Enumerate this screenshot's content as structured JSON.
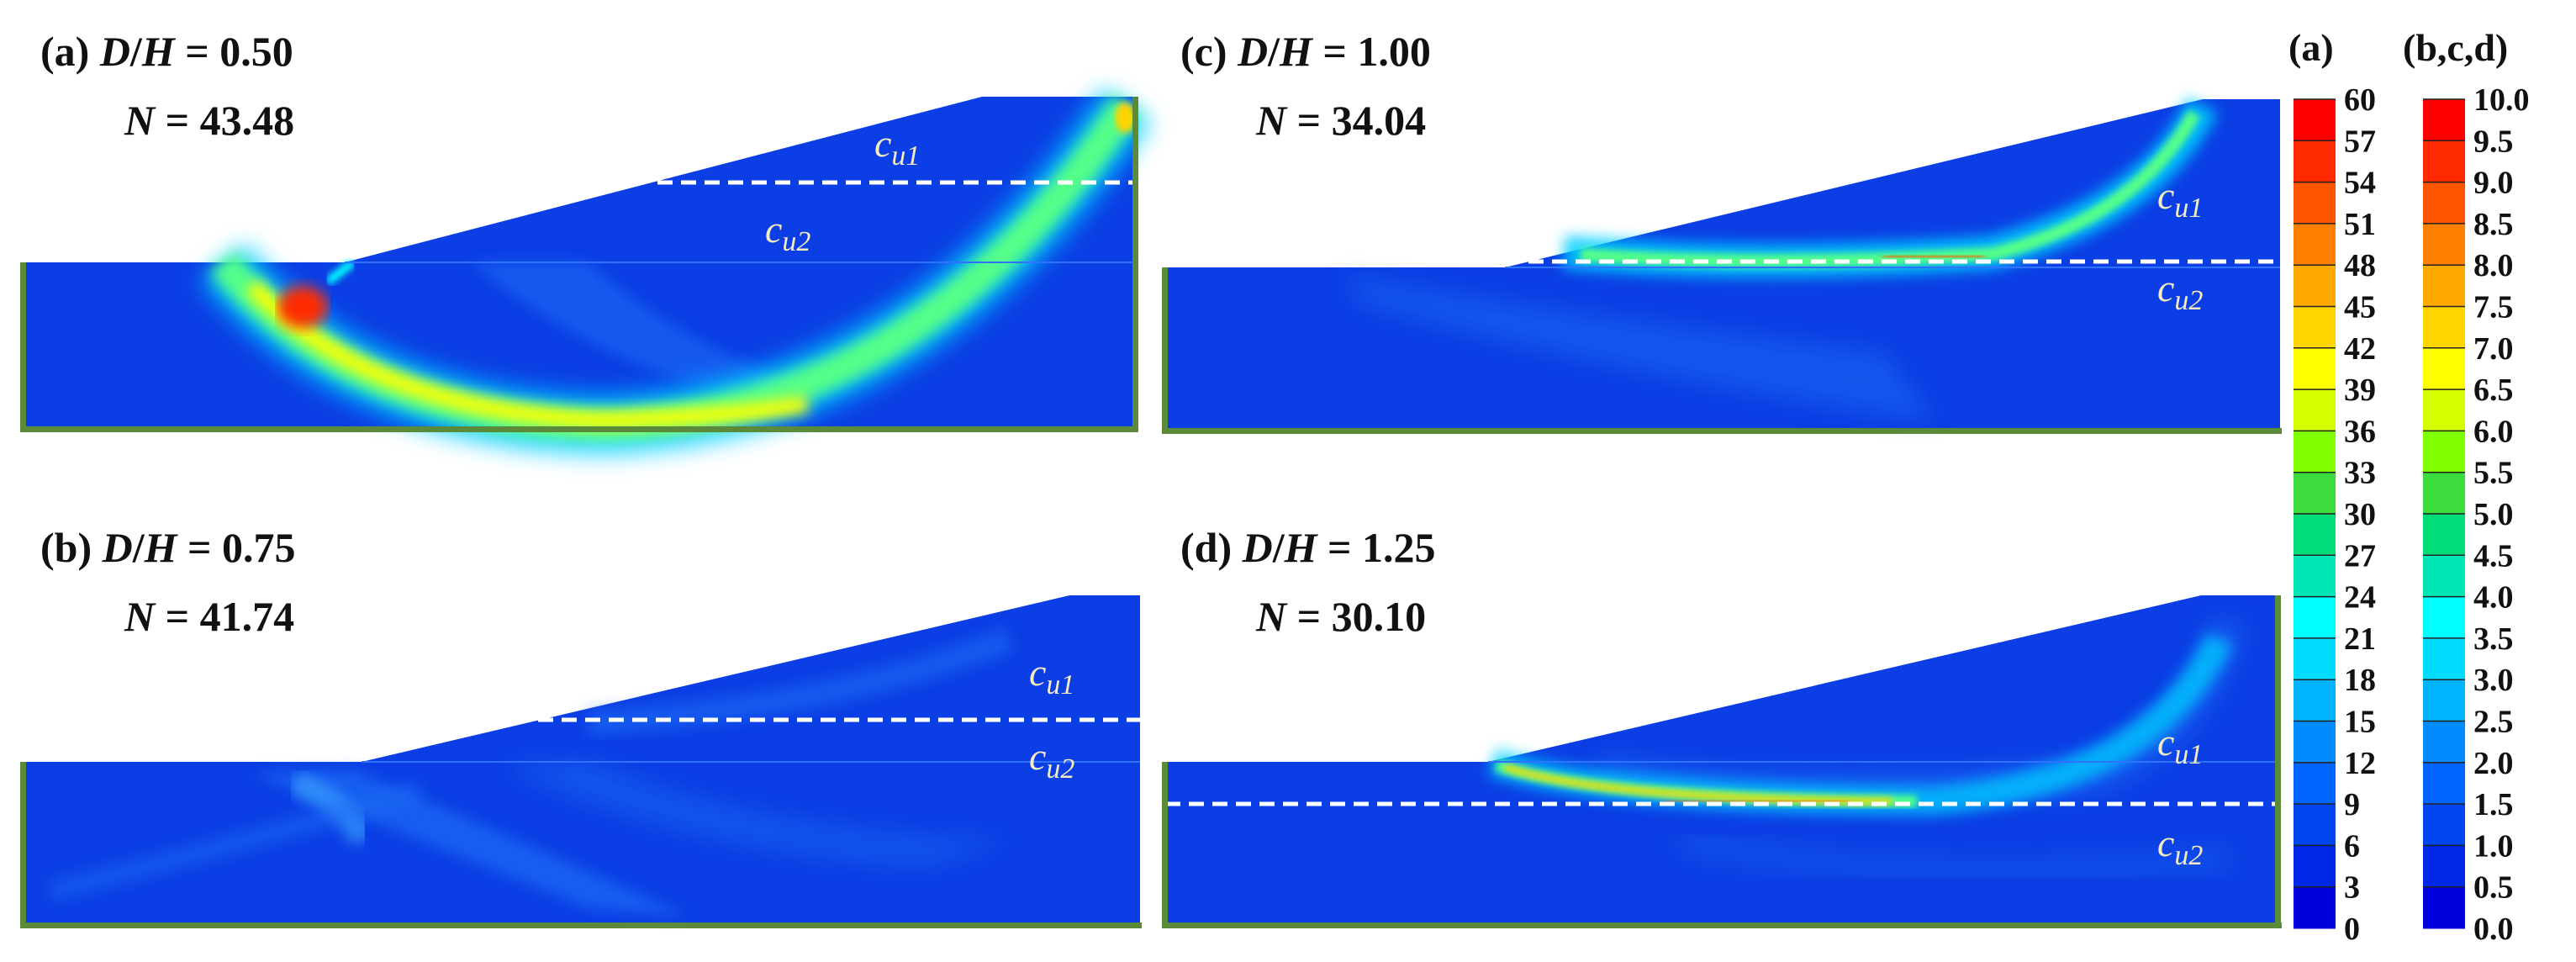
{
  "panels": [
    {
      "letter": "(a)",
      "ratio": "0.50",
      "N": "43.48",
      "cu1": "c",
      "cu1_sub": "u1",
      "cu2": "c",
      "cu2_sub": "u2"
    },
    {
      "letter": "(b)",
      "ratio": "0.75",
      "N": "41.74",
      "cu1": "c",
      "cu1_sub": "u1",
      "cu2": "c",
      "cu2_sub": "u2"
    },
    {
      "letter": "(c)",
      "ratio": "1.00",
      "N": "34.04",
      "cu1": "c",
      "cu1_sub": "u1",
      "cu2": "c",
      "cu2_sub": "u2"
    },
    {
      "letter": "(d)",
      "ratio": "1.25",
      "N": "30.10",
      "cu1": "c",
      "cu1_sub": "u1",
      "cu2": "c",
      "cu2_sub": "u2"
    }
  ],
  "ratio_label": {
    "D": "D",
    "slash": "/",
    "H": "H",
    "eq": " = "
  },
  "n_label": {
    "N": "N",
    "eq": " = "
  },
  "colorbars": {
    "left_header": "(a)",
    "right_header": "(b,c,d)",
    "left_ticks": [
      "60",
      "57",
      "54",
      "51",
      "48",
      "45",
      "42",
      "39",
      "36",
      "33",
      "30",
      "27",
      "24",
      "21",
      "18",
      "15",
      "12",
      "9",
      "6",
      "3",
      "0"
    ],
    "right_ticks": [
      "10.0",
      "9.5",
      "9.0",
      "8.5",
      "8.0",
      "7.5",
      "7.0",
      "6.5",
      "6.0",
      "5.5",
      "5.0",
      "4.5",
      "4.0",
      "3.5",
      "3.0",
      "2.5",
      "2.0",
      "1.5",
      "1.0",
      "0.5",
      "0.0"
    ],
    "colors_top_to_bottom": [
      "#ff0000",
      "#ff2a00",
      "#ff5500",
      "#ff8000",
      "#ffaa00",
      "#ffd400",
      "#ffff00",
      "#d4ff00",
      "#80ff00",
      "#3cdc3c",
      "#00dc78",
      "#00e6b4",
      "#00ffff",
      "#00dcff",
      "#00b4ff",
      "#008cff",
      "#0064ff",
      "#0046f0",
      "#0028e6",
      "#0000dc"
    ]
  },
  "colors": {
    "background_field": "#0b3ee4",
    "light_field": "#1e6cf5",
    "boundary": "#5b8a3a",
    "dashed_line": "#ffffff"
  }
}
